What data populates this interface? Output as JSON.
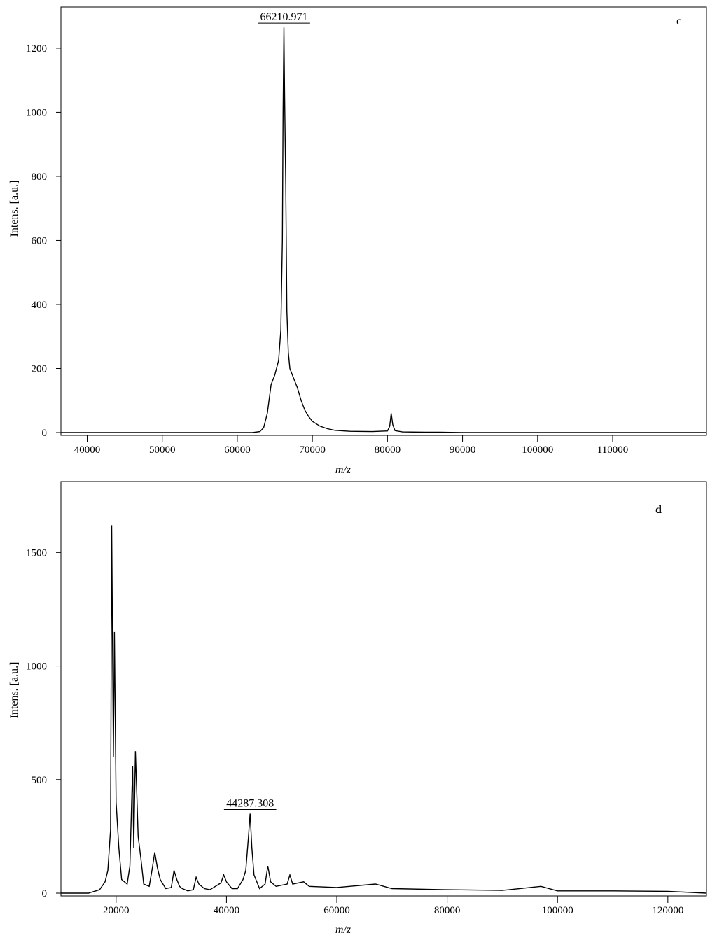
{
  "chart_data": [
    {
      "type": "line",
      "panel_label": "c",
      "xlabel": "m/z",
      "ylabel": "Intens. [a.u.]",
      "xlim": [
        36500,
        122500
      ],
      "ylim": [
        0,
        1320
      ],
      "x_ticks": [
        40000,
        50000,
        60000,
        70000,
        80000,
        90000,
        100000,
        110000
      ],
      "x_tick_labels": [
        "40000",
        "50000",
        "60000",
        "70000",
        "80000",
        "90000",
        "100000",
        "110000"
      ],
      "y_ticks": [
        0,
        200,
        400,
        600,
        800,
        1000,
        1200
      ],
      "y_tick_labels": [
        "0",
        "200",
        "400",
        "600",
        "800",
        "1000",
        "1200"
      ],
      "grid": false,
      "annotations": [
        {
          "x": 66210.971,
          "y": 1265,
          "text": "66210.971"
        }
      ],
      "series": [
        {
          "x": [
            36500,
            62000,
            63000,
            63500,
            64000,
            64500,
            65000,
            65500,
            65800,
            66000,
            66100,
            66210.971,
            66300,
            66450,
            66600,
            66800,
            67000,
            67500,
            68000,
            68500,
            69000,
            69500,
            70000,
            71000,
            72000,
            73000,
            75000,
            78000,
            80000,
            80300,
            80500,
            80700,
            81000,
            82000,
            85000,
            87000,
            90000,
            100000,
            110000,
            122500
          ],
          "y": [
            0,
            0,
            3,
            15,
            60,
            150,
            180,
            225,
            320,
            600,
            1000,
            1265,
            1050,
            780,
            380,
            250,
            200,
            170,
            140,
            100,
            70,
            50,
            35,
            20,
            12,
            7,
            4,
            3,
            5,
            20,
            60,
            25,
            6,
            2,
            1,
            1,
            0,
            0,
            0,
            0
          ]
        }
      ]
    },
    {
      "type": "line",
      "panel_label": "d",
      "xlabel": "m/z",
      "ylabel": "Intens. [a.u.]",
      "xlim": [
        10000,
        127000
      ],
      "ylim": [
        0,
        1800
      ],
      "x_ticks": [
        20000,
        40000,
        60000,
        80000,
        100000,
        120000
      ],
      "x_tick_labels": [
        "20000",
        "40000",
        "60000",
        "80000",
        "100000",
        "120000"
      ],
      "y_ticks": [
        0,
        500,
        1000,
        1500
      ],
      "y_tick_labels": [
        "0",
        "500",
        "1000",
        "1500"
      ],
      "grid": false,
      "annotations": [
        {
          "x": 44287.308,
          "y": 350,
          "text": "44287.308"
        }
      ],
      "series": [
        {
          "x": [
            10000,
            15000,
            17000,
            18000,
            18500,
            19000,
            19200,
            19500,
            19700,
            20000,
            20500,
            21000,
            22000,
            22500,
            23000,
            23200,
            23500,
            24000,
            24500,
            25000,
            26000,
            26500,
            27000,
            27500,
            28000,
            29000,
            30000,
            30500,
            31000,
            31500,
            32000,
            33000,
            34000,
            34500,
            35000,
            36000,
            37000,
            38000,
            39000,
            39500,
            40000,
            41000,
            42000,
            43000,
            43500,
            44000,
            44287.308,
            44600,
            45000,
            46000,
            47000,
            47500,
            48000,
            49000,
            51000,
            51500,
            52000,
            54000,
            55000,
            60000,
            67000,
            70000,
            80000,
            90000,
            97000,
            100000,
            110000,
            120000,
            127000
          ],
          "y": [
            0,
            0,
            15,
            50,
            100,
            280,
            1620,
            600,
            1150,
            400,
            200,
            60,
            40,
            120,
            560,
            200,
            625,
            250,
            150,
            40,
            30,
            100,
            180,
            110,
            60,
            20,
            25,
            100,
            60,
            30,
            20,
            10,
            15,
            70,
            40,
            20,
            15,
            30,
            45,
            80,
            50,
            20,
            20,
            60,
            100,
            250,
            350,
            200,
            80,
            20,
            40,
            120,
            50,
            30,
            40,
            80,
            40,
            50,
            30,
            25,
            40,
            20,
            15,
            12,
            30,
            10,
            10,
            8,
            0
          ]
        }
      ]
    }
  ]
}
